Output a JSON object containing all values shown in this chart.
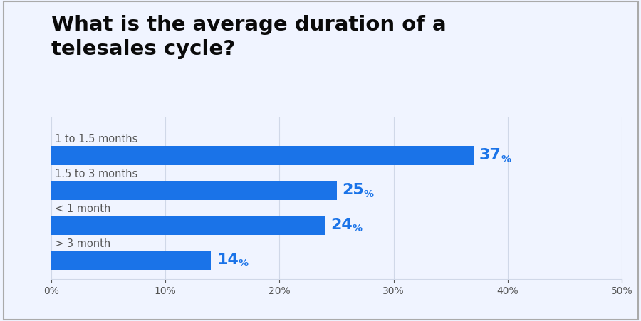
{
  "title": "What is the average duration of a\ntelesales cycle?",
  "categories": [
    "> 3 month",
    "< 1 month",
    "1.5 to 3 months",
    "1 to 1.5 months"
  ],
  "values": [
    14,
    24,
    25,
    37
  ],
  "bar_color": "#1a73e8",
  "label_color": "#1a73e8",
  "title_color": "#0a0a0a",
  "category_color": "#555555",
  "background_color": "#f0f4ff",
  "border_color": "#aaaaaa",
  "xlim": [
    0,
    50
  ],
  "xtick_values": [
    0,
    10,
    20,
    30,
    40,
    50
  ],
  "bar_height": 0.55,
  "title_fontsize": 21,
  "category_fontsize": 10.5,
  "label_fontsize": 16,
  "label_percent_fontsize": 10,
  "tick_fontsize": 10,
  "grid_color": "#d0d8e8"
}
